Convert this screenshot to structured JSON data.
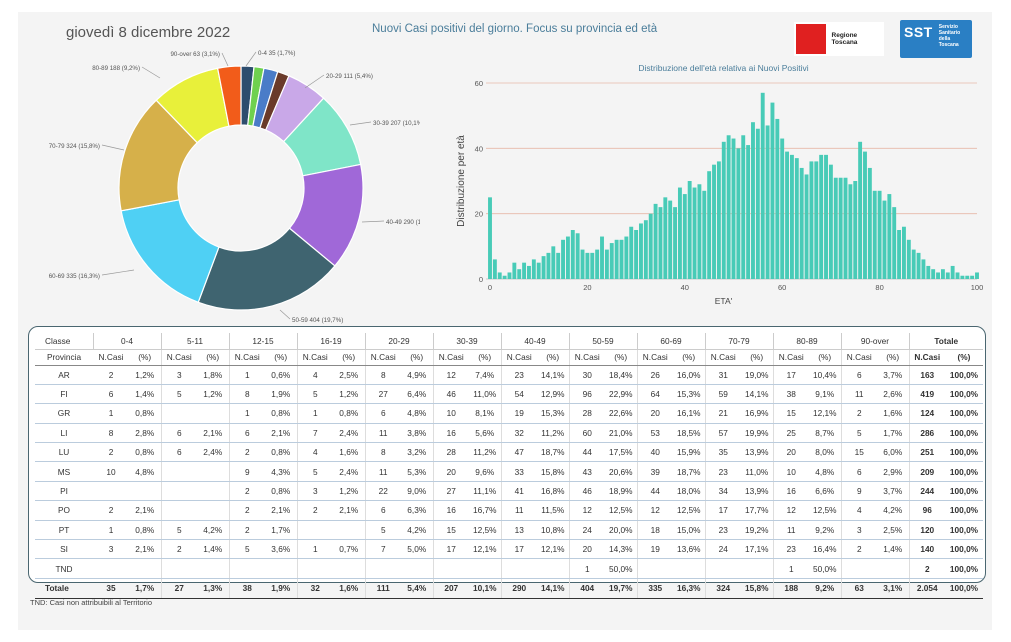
{
  "header": {
    "date": "giovedì 8 dicembre 2022",
    "title": "Nuovi Casi positivi del giorno. Focus su provincia ed età",
    "logo_regione": "Regione Toscana",
    "logo_sst": "SST",
    "logo_sst_sub": [
      "Servizio",
      "Sanitario",
      "della",
      "Toscana"
    ]
  },
  "chart_data": [
    {
      "type": "pie",
      "subtype": "donut",
      "title": "",
      "slices": [
        {
          "label": "0-4 35 (1,7%)",
          "value": 35,
          "color": "#2d4d6e"
        },
        {
          "label": "5-11",
          "value": 27,
          "color": "#5b82c8"
        },
        {
          "label": "12-15",
          "value": 38,
          "color": "#c0392b"
        },
        {
          "label": "16-19",
          "value": 32,
          "color": "#7a4a3a"
        },
        {
          "label": "20-29 111 (5,4%)",
          "value": 111,
          "color": "#c9a8e8"
        },
        {
          "label": "30-39 207 (10,1%)",
          "value": 207,
          "color": "#7fe5c8"
        },
        {
          "label": "40-49 290 (14,1%)",
          "value": 290,
          "color": "#a068d8"
        },
        {
          "label": "50-59 404 (19,7%)",
          "value": 404,
          "color": "#3f6470"
        },
        {
          "label": "60-69 335 (16,3%)",
          "value": 335,
          "color": "#4fd0f4"
        },
        {
          "label": "70-79 324 (15,8%)",
          "value": 324,
          "color": "#d6b04a"
        },
        {
          "label": "80-89 188 (9,2%)",
          "value": 188,
          "color": "#e8f03a"
        },
        {
          "label": "90-over 63 (3,1%)",
          "value": 63,
          "color": "#f25c1a"
        }
      ],
      "small_slice_colors": [
        "#2d4d6e",
        "#6fd14f",
        "#4a7cc8",
        "#6a3a2a"
      ]
    },
    {
      "type": "bar",
      "title": "Distribuzione dell'età relativa ai Nuovi Positivi",
      "xlabel": "ETA'",
      "ylabel": "Distribuzione per età",
      "xlim": [
        0,
        100
      ],
      "ylim": [
        0,
        60
      ],
      "xticks": [
        0,
        20,
        40,
        60,
        80,
        100
      ],
      "yticks": [
        0,
        20,
        40,
        60
      ],
      "color": "#48cbb7",
      "x": [
        0,
        1,
        2,
        3,
        4,
        5,
        6,
        7,
        8,
        9,
        10,
        11,
        12,
        13,
        14,
        15,
        16,
        17,
        18,
        19,
        20,
        21,
        22,
        23,
        24,
        25,
        26,
        27,
        28,
        29,
        30,
        31,
        32,
        33,
        34,
        35,
        36,
        37,
        38,
        39,
        40,
        41,
        42,
        43,
        44,
        45,
        46,
        47,
        48,
        49,
        50,
        51,
        52,
        53,
        54,
        55,
        56,
        57,
        58,
        59,
        60,
        61,
        62,
        63,
        64,
        65,
        66,
        67,
        68,
        69,
        70,
        71,
        72,
        73,
        74,
        75,
        76,
        77,
        78,
        79,
        80,
        81,
        82,
        83,
        84,
        85,
        86,
        87,
        88,
        89,
        90,
        91,
        92,
        93,
        94,
        95,
        96,
        97,
        98,
        99,
        100
      ],
      "values": [
        25,
        6,
        2,
        1,
        2,
        5,
        3,
        5,
        4,
        6,
        5,
        7,
        8,
        10,
        8,
        12,
        13,
        15,
        14,
        9,
        8,
        8,
        9,
        13,
        9,
        11,
        12,
        12,
        13,
        16,
        15,
        17,
        18,
        20,
        23,
        22,
        25,
        24,
        22,
        28,
        26,
        30,
        28,
        29,
        27,
        33,
        35,
        36,
        42,
        44,
        43,
        40,
        44,
        41,
        48,
        46,
        57,
        47,
        54,
        49,
        43,
        39,
        38,
        37,
        34,
        32,
        36,
        36,
        38,
        38,
        35,
        31,
        31,
        31,
        29,
        30,
        42,
        39,
        34,
        27,
        27,
        24,
        26,
        22,
        15,
        16,
        12,
        9,
        8,
        6,
        4,
        3,
        2,
        3,
        2,
        4,
        2,
        1,
        1,
        1,
        2
      ]
    }
  ],
  "table": {
    "classe_label": "Classe",
    "provincia_label": "Provincia",
    "groups": [
      "0-4",
      "5-11",
      "12-15",
      "16-19",
      "20-29",
      "30-39",
      "40-49",
      "50-59",
      "60-69",
      "70-79",
      "80-89",
      "90-over"
    ],
    "totale_label": "Totale",
    "ncasi_label": "N.Casi",
    "pct_label": "(%)",
    "rows": [
      {
        "prov": "AR",
        "cells": [
          [
            "2",
            "1,2%"
          ],
          [
            "3",
            "1,8%"
          ],
          [
            "1",
            "0,6%"
          ],
          [
            "4",
            "2,5%"
          ],
          [
            "8",
            "4,9%"
          ],
          [
            "12",
            "7,4%"
          ],
          [
            "23",
            "14,1%"
          ],
          [
            "30",
            "18,4%"
          ],
          [
            "26",
            "16,0%"
          ],
          [
            "31",
            "19,0%"
          ],
          [
            "17",
            "10,4%"
          ],
          [
            "6",
            "3,7%"
          ]
        ],
        "tot": [
          "163",
          "100,0%"
        ]
      },
      {
        "prov": "FI",
        "cells": [
          [
            "6",
            "1,4%"
          ],
          [
            "5",
            "1,2%"
          ],
          [
            "8",
            "1,9%"
          ],
          [
            "5",
            "1,2%"
          ],
          [
            "27",
            "6,4%"
          ],
          [
            "46",
            "11,0%"
          ],
          [
            "54",
            "12,9%"
          ],
          [
            "96",
            "22,9%"
          ],
          [
            "64",
            "15,3%"
          ],
          [
            "59",
            "14,1%"
          ],
          [
            "38",
            "9,1%"
          ],
          [
            "11",
            "2,6%"
          ]
        ],
        "tot": [
          "419",
          "100,0%"
        ]
      },
      {
        "prov": "GR",
        "cells": [
          [
            "1",
            "0,8%"
          ],
          [
            "",
            ""
          ],
          [
            "1",
            "0,8%"
          ],
          [
            "1",
            "0,8%"
          ],
          [
            "6",
            "4,8%"
          ],
          [
            "10",
            "8,1%"
          ],
          [
            "19",
            "15,3%"
          ],
          [
            "28",
            "22,6%"
          ],
          [
            "20",
            "16,1%"
          ],
          [
            "21",
            "16,9%"
          ],
          [
            "15",
            "12,1%"
          ],
          [
            "2",
            "1,6%"
          ]
        ],
        "tot": [
          "124",
          "100,0%"
        ]
      },
      {
        "prov": "LI",
        "cells": [
          [
            "8",
            "2,8%"
          ],
          [
            "6",
            "2,1%"
          ],
          [
            "6",
            "2,1%"
          ],
          [
            "7",
            "2,4%"
          ],
          [
            "11",
            "3,8%"
          ],
          [
            "16",
            "5,6%"
          ],
          [
            "32",
            "11,2%"
          ],
          [
            "60",
            "21,0%"
          ],
          [
            "53",
            "18,5%"
          ],
          [
            "57",
            "19,9%"
          ],
          [
            "25",
            "8,7%"
          ],
          [
            "5",
            "1,7%"
          ]
        ],
        "tot": [
          "286",
          "100,0%"
        ]
      },
      {
        "prov": "LU",
        "cells": [
          [
            "2",
            "0,8%"
          ],
          [
            "6",
            "2,4%"
          ],
          [
            "2",
            "0,8%"
          ],
          [
            "4",
            "1,6%"
          ],
          [
            "8",
            "3,2%"
          ],
          [
            "28",
            "11,2%"
          ],
          [
            "47",
            "18,7%"
          ],
          [
            "44",
            "17,5%"
          ],
          [
            "40",
            "15,9%"
          ],
          [
            "35",
            "13,9%"
          ],
          [
            "20",
            "8,0%"
          ],
          [
            "15",
            "6,0%"
          ]
        ],
        "tot": [
          "251",
          "100,0%"
        ]
      },
      {
        "prov": "MS",
        "cells": [
          [
            "10",
            "4,8%"
          ],
          [
            "",
            ""
          ],
          [
            "9",
            "4,3%"
          ],
          [
            "5",
            "2,4%"
          ],
          [
            "11",
            "5,3%"
          ],
          [
            "20",
            "9,6%"
          ],
          [
            "33",
            "15,8%"
          ],
          [
            "43",
            "20,6%"
          ],
          [
            "39",
            "18,7%"
          ],
          [
            "23",
            "11,0%"
          ],
          [
            "10",
            "4,8%"
          ],
          [
            "6",
            "2,9%"
          ]
        ],
        "tot": [
          "209",
          "100,0%"
        ]
      },
      {
        "prov": "PI",
        "cells": [
          [
            "",
            ""
          ],
          [
            "",
            ""
          ],
          [
            "2",
            "0,8%"
          ],
          [
            "3",
            "1,2%"
          ],
          [
            "22",
            "9,0%"
          ],
          [
            "27",
            "11,1%"
          ],
          [
            "41",
            "16,8%"
          ],
          [
            "46",
            "18,9%"
          ],
          [
            "44",
            "18,0%"
          ],
          [
            "34",
            "13,9%"
          ],
          [
            "16",
            "6,6%"
          ],
          [
            "9",
            "3,7%"
          ]
        ],
        "tot": [
          "244",
          "100,0%"
        ]
      },
      {
        "prov": "PO",
        "cells": [
          [
            "2",
            "2,1%"
          ],
          [
            "",
            ""
          ],
          [
            "2",
            "2,1%"
          ],
          [
            "2",
            "2,1%"
          ],
          [
            "6",
            "6,3%"
          ],
          [
            "16",
            "16,7%"
          ],
          [
            "11",
            "11,5%"
          ],
          [
            "12",
            "12,5%"
          ],
          [
            "12",
            "12,5%"
          ],
          [
            "17",
            "17,7%"
          ],
          [
            "12",
            "12,5%"
          ],
          [
            "4",
            "4,2%"
          ]
        ],
        "tot": [
          "96",
          "100,0%"
        ]
      },
      {
        "prov": "PT",
        "cells": [
          [
            "1",
            "0,8%"
          ],
          [
            "5",
            "4,2%"
          ],
          [
            "2",
            "1,7%"
          ],
          [
            "",
            ""
          ],
          [
            "5",
            "4,2%"
          ],
          [
            "15",
            "12,5%"
          ],
          [
            "13",
            "10,8%"
          ],
          [
            "24",
            "20,0%"
          ],
          [
            "18",
            "15,0%"
          ],
          [
            "23",
            "19,2%"
          ],
          [
            "11",
            "9,2%"
          ],
          [
            "3",
            "2,5%"
          ]
        ],
        "tot": [
          "120",
          "100,0%"
        ]
      },
      {
        "prov": "SI",
        "cells": [
          [
            "3",
            "2,1%"
          ],
          [
            "2",
            "1,4%"
          ],
          [
            "5",
            "3,6%"
          ],
          [
            "1",
            "0,7%"
          ],
          [
            "7",
            "5,0%"
          ],
          [
            "17",
            "12,1%"
          ],
          [
            "17",
            "12,1%"
          ],
          [
            "20",
            "14,3%"
          ],
          [
            "19",
            "13,6%"
          ],
          [
            "24",
            "17,1%"
          ],
          [
            "23",
            "16,4%"
          ],
          [
            "2",
            "1,4%"
          ]
        ],
        "tot": [
          "140",
          "100,0%"
        ]
      },
      {
        "prov": "TND",
        "cells": [
          [
            "",
            ""
          ],
          [
            "",
            ""
          ],
          [
            "",
            ""
          ],
          [
            "",
            ""
          ],
          [
            "",
            ""
          ],
          [
            "",
            ""
          ],
          [
            "",
            ""
          ],
          [
            "1",
            "50,0%"
          ],
          [
            "",
            ""
          ],
          [
            "",
            ""
          ],
          [
            "1",
            "50,0%"
          ],
          [
            "",
            ""
          ]
        ],
        "tot": [
          "2",
          "100,0%"
        ]
      }
    ],
    "total_row": {
      "prov": "Totale",
      "cells": [
        [
          "35",
          "1,7%"
        ],
        [
          "27",
          "1,3%"
        ],
        [
          "38",
          "1,9%"
        ],
        [
          "32",
          "1,6%"
        ],
        [
          "111",
          "5,4%"
        ],
        [
          "207",
          "10,1%"
        ],
        [
          "290",
          "14,1%"
        ],
        [
          "404",
          "19,7%"
        ],
        [
          "335",
          "16,3%"
        ],
        [
          "324",
          "15,8%"
        ],
        [
          "188",
          "9,2%"
        ],
        [
          "63",
          "3,1%"
        ]
      ],
      "tot": [
        "2.054",
        "100,0%"
      ]
    }
  },
  "footnote": "TND:  Casi non attribuibili al Territorio"
}
